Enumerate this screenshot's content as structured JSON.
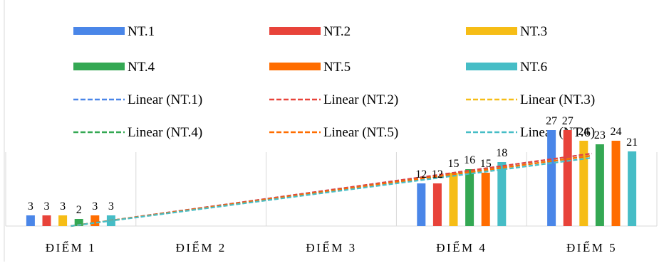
{
  "chart_data": {
    "type": "bar",
    "title": "",
    "xlabel": "",
    "ylabel": "",
    "categories": [
      "ĐIỂM 1",
      "ĐIỂM 2",
      "ĐIỂM 3",
      "ĐIỂM 4",
      "ĐIỂM 5"
    ],
    "series": [
      {
        "name": "NT.1",
        "color": "#4a86e8",
        "values": [
          3,
          0,
          0,
          12,
          27
        ]
      },
      {
        "name": "NT.2",
        "color": "#e8433a",
        "values": [
          3,
          0,
          0,
          12,
          27
        ]
      },
      {
        "name": "NT.3",
        "color": "#f6bd16",
        "values": [
          3,
          0,
          0,
          15,
          24
        ]
      },
      {
        "name": "NT.4",
        "color": "#34a853",
        "values": [
          2,
          0,
          0,
          16,
          23
        ]
      },
      {
        "name": "NT.5",
        "color": "#ff6d00",
        "values": [
          3,
          0,
          0,
          15,
          24
        ]
      },
      {
        "name": "NT.6",
        "color": "#46bdc6",
        "values": [
          3,
          0,
          0,
          18,
          21
        ]
      }
    ],
    "data_labels_shown": [
      [
        3,
        null,
        null,
        12,
        27
      ],
      [
        3,
        null,
        null,
        12,
        27
      ],
      [
        3,
        null,
        null,
        15,
        24
      ],
      [
        2,
        null,
        null,
        16,
        23
      ],
      [
        3,
        null,
        null,
        15,
        24
      ],
      [
        3,
        null,
        null,
        18,
        21
      ]
    ],
    "trendlines": [
      {
        "name": "Linear (NT.1)",
        "series": "NT.1",
        "type": "linear",
        "style": "dashed"
      },
      {
        "name": "Linear (NT.2)",
        "series": "NT.2",
        "type": "linear",
        "style": "dashed"
      },
      {
        "name": "Linear (NT.3)",
        "series": "NT.3",
        "type": "linear",
        "style": "dashed"
      },
      {
        "name": "Linear (NT.4)",
        "series": "NT.4",
        "type": "linear",
        "style": "dashed"
      },
      {
        "name": "Linear (NT.5)",
        "series": "NT.5",
        "type": "linear",
        "style": "dashed"
      },
      {
        "name": "Linear (NT.6)",
        "series": "NT.6",
        "type": "linear",
        "style": "dashed"
      }
    ],
    "ylim": [
      0,
      30
    ],
    "grid": "vertical category separators",
    "legend_position": "top"
  }
}
